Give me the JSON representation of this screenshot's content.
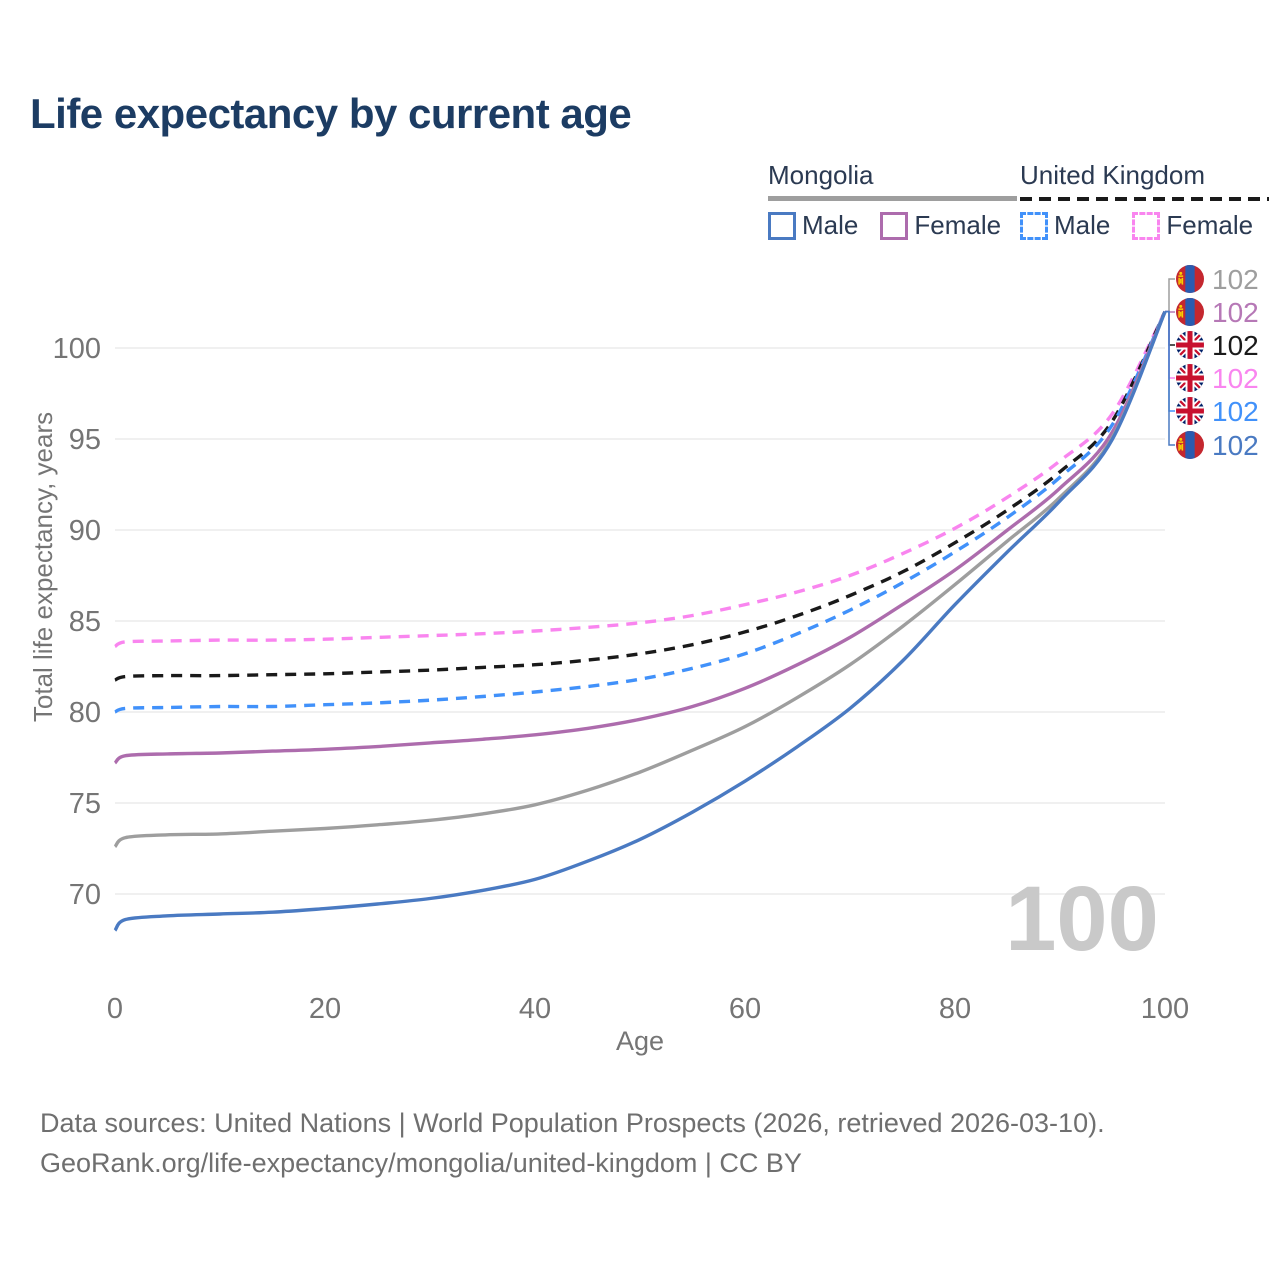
{
  "title": "Life expectancy by current age",
  "legend": {
    "groups": [
      {
        "country": "Mongolia",
        "line_style": "solid",
        "underline_color": "#9e9e9e",
        "items": [
          {
            "label": "Male",
            "color": "#4a7ac2"
          },
          {
            "label": "Female",
            "color": "#ad6cad"
          }
        ]
      },
      {
        "country": "United Kingdom",
        "line_style": "dashed",
        "underline_color": "#1a1a1a",
        "items": [
          {
            "label": "Male",
            "color": "#4191fa"
          },
          {
            "label": "Female",
            "color": "#f985ef"
          }
        ]
      }
    ]
  },
  "age_watermark": "100",
  "footer": {
    "line1": "Data sources: United Nations | World Population Prospects (2026, retrieved 2026-03-10).",
    "line2": "GeoRank.org/life-expectancy/mongolia/united-kingdom | CC BY"
  },
  "chart_data": {
    "type": "line",
    "title": "Life expectancy by current age",
    "xlabel": "Age",
    "ylabel": "Total life expectancy, years",
    "x_ticks": [
      0,
      20,
      40,
      60,
      80,
      100
    ],
    "y_ticks": [
      70,
      75,
      80,
      85,
      90,
      95,
      100
    ],
    "xlim": [
      0,
      100
    ],
    "ylim": [
      66.5,
      103.5
    ],
    "grid": "horizontal-only",
    "legend_position": "top-right",
    "ages": [
      0,
      1,
      5,
      10,
      15,
      20,
      25,
      30,
      35,
      40,
      45,
      50,
      55,
      60,
      65,
      70,
      75,
      80,
      85,
      90,
      95,
      100
    ],
    "series": [
      {
        "key": "mongolia-male",
        "name": "Mongolia Male",
        "country": "Mongolia",
        "flag": "mn",
        "color": "#4a7ac2",
        "dash": false,
        "values": [
          68.0,
          68.6,
          68.8,
          68.9,
          69.0,
          69.2,
          69.45,
          69.75,
          70.2,
          70.8,
          71.8,
          73.0,
          74.5,
          76.2,
          78.1,
          80.2,
          82.8,
          85.9,
          88.8,
          91.6,
          95.0,
          102
        ]
      },
      {
        "key": "mongolia-both",
        "name": "Mongolia Both sexes",
        "country": "Mongolia",
        "flag": "mn",
        "color": "#9e9e9e",
        "dash": false,
        "values": [
          72.6,
          73.1,
          73.25,
          73.3,
          73.45,
          73.6,
          73.8,
          74.05,
          74.4,
          74.9,
          75.7,
          76.7,
          77.9,
          79.2,
          80.8,
          82.6,
          84.7,
          87.0,
          89.4,
          91.8,
          95.1,
          102
        ]
      },
      {
        "key": "mongolia-female",
        "name": "Mongolia Female",
        "country": "Mongolia",
        "flag": "mn",
        "color": "#ad6cad",
        "dash": false,
        "values": [
          77.2,
          77.6,
          77.7,
          77.75,
          77.85,
          77.95,
          78.1,
          78.3,
          78.5,
          78.75,
          79.1,
          79.6,
          80.3,
          81.3,
          82.6,
          84.1,
          85.9,
          87.8,
          90.0,
          92.3,
          95.4,
          102
        ]
      },
      {
        "key": "uk-male",
        "name": "United Kingdom Male",
        "country": "United Kingdom",
        "flag": "gb",
        "color": "#4191fa",
        "dash": true,
        "values": [
          80.0,
          80.2,
          80.25,
          80.3,
          80.3,
          80.4,
          80.5,
          80.65,
          80.85,
          81.1,
          81.4,
          81.8,
          82.4,
          83.2,
          84.3,
          85.6,
          87.1,
          88.8,
          90.7,
          92.9,
          95.8,
          102
        ]
      },
      {
        "key": "uk-both",
        "name": "United Kingdom Both sexes",
        "country": "United Kingdom",
        "flag": "gb",
        "color": "#1a1a1a",
        "dash": true,
        "values": [
          81.75,
          81.95,
          82.0,
          82.0,
          82.05,
          82.1,
          82.2,
          82.3,
          82.45,
          82.6,
          82.85,
          83.2,
          83.7,
          84.4,
          85.3,
          86.4,
          87.7,
          89.3,
          91.1,
          93.2,
          96.0,
          102
        ]
      },
      {
        "key": "uk-female",
        "name": "United Kingdom Female",
        "country": "United Kingdom",
        "flag": "gb",
        "color": "#f985ef",
        "dash": true,
        "values": [
          83.6,
          83.85,
          83.9,
          83.95,
          83.95,
          84.0,
          84.1,
          84.2,
          84.3,
          84.45,
          84.65,
          84.9,
          85.3,
          85.9,
          86.6,
          87.5,
          88.7,
          90.1,
          91.8,
          93.8,
          96.4,
          102
        ]
      }
    ],
    "edge_labels": [
      {
        "series": "mongolia-both",
        "flag": "mn",
        "value": "102",
        "color": "#9e9e9e"
      },
      {
        "series": "mongolia-female",
        "flag": "mn",
        "value": "102",
        "color": "#b678b6"
      },
      {
        "series": "uk-both",
        "flag": "gb",
        "value": "102",
        "color": "#1a1a1a"
      },
      {
        "series": "uk-female",
        "flag": "gb",
        "value": "102",
        "color": "#f985ef"
      },
      {
        "series": "uk-male",
        "flag": "gb",
        "value": "102",
        "color": "#4191fa"
      },
      {
        "series": "mongolia-male",
        "flag": "mn",
        "value": "102",
        "color": "#4a7ac2"
      }
    ]
  }
}
